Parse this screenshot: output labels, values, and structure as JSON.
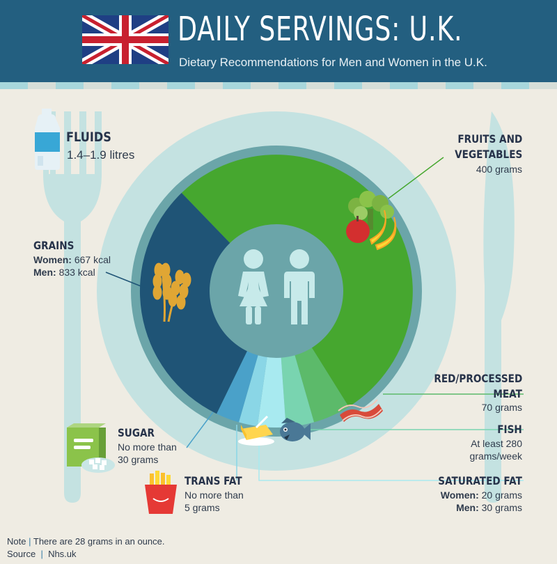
{
  "header": {
    "title": "DAILY SERVINGS: U.K.",
    "subtitle": "Dietary Recommendations for Men and Women in the U.K."
  },
  "colors": {
    "header_bg": "#235f80",
    "background": "#efece3",
    "fruits_vegetables": "#46a72f",
    "grains": "#1f5476",
    "red_meat": "#5cba6a",
    "fish": "#79d4b0",
    "saturated_fat": "#a8eaf0",
    "trans_fat": "#8ad6e6",
    "sugar": "#4aa1c9"
  },
  "labels": {
    "fluids": {
      "title": "FLUIDS",
      "amount": "1.4–1.9 litres",
      "icon": "water-bottle-icon"
    },
    "fruits_vegetables": {
      "title_line1": "FRUITS AND",
      "title_line2": "VEGETABLES",
      "amount": "400 grams",
      "icon": "fruits-vegetables-icon"
    },
    "grains": {
      "title": "GRAINS",
      "women_label": "Women:",
      "women_value": "667 kcal",
      "men_label": "Men:",
      "men_value": "833 kcal",
      "icon": "wheat-icon"
    },
    "red_meat": {
      "title_line1": "RED/PROCESSED",
      "title_line2": "MEAT",
      "amount": "70 grams",
      "icon": "bacon-icon"
    },
    "fish": {
      "title": "FISH",
      "amount_line1": "At least 280",
      "amount_line2": "grams/week",
      "icon": "fish-icon"
    },
    "sugar": {
      "title": "SUGAR",
      "amount_line1": "No more than",
      "amount_line2": "30 grams",
      "icon": "sugar-box-icon"
    },
    "trans_fat": {
      "title": "TRANS FAT",
      "amount_line1": "No more than",
      "amount_line2": "5 grams",
      "icon": "fries-icon"
    },
    "saturated_fat": {
      "title": "SATURATED FAT",
      "women_label": "Women:",
      "women_value": "20 grams",
      "men_label": "Men:",
      "men_value": "30 grams",
      "icon": "butter-icon"
    }
  },
  "footer": {
    "note_label": "Note",
    "note_text": "There are 28 grams in an ounce.",
    "source_label": "Source",
    "source_text": "Nhs.uk"
  }
}
